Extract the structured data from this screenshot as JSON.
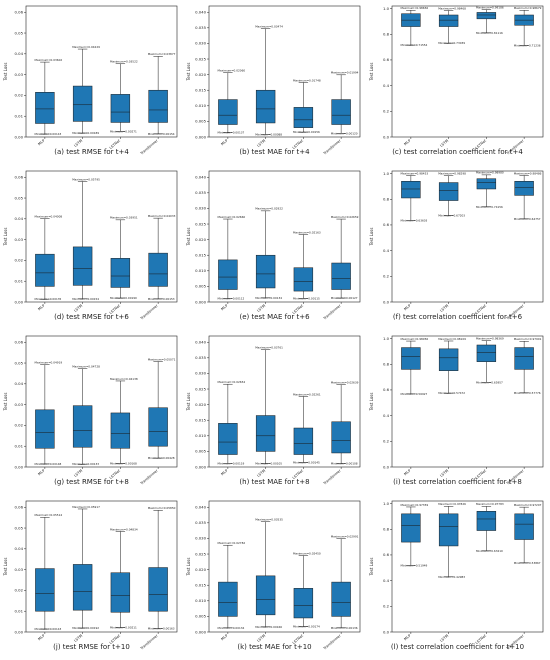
{
  "chart_data": [
    {
      "type": "box",
      "caption": "(a) test RMSE for t+4",
      "ylabel": "Test Loss",
      "ylim": [
        0,
        0.063
      ],
      "yticks": [
        0.0,
        0.01,
        0.02,
        0.03,
        0.04,
        0.05,
        0.06
      ],
      "categories": [
        "MLP",
        "LSTM",
        "LSTNet",
        "Transformer"
      ],
      "boxes": [
        {
          "max": 0.03602,
          "max_label": "Maximum=0.03602",
          "min": 0.00143,
          "min_label": "Minimum=0.00143",
          "q1": 0.0065,
          "median": 0.0135,
          "q3": 0.0215
        },
        {
          "max": 0.04229,
          "max_label": "Maximum=0.04229",
          "min": 0.00189,
          "min_label": "Minimum=0.00189",
          "q1": 0.0075,
          "median": 0.0155,
          "q3": 0.0245
        },
        {
          "max": 0.03522,
          "max_label": "Maximum=0.03522",
          "min": 0.00271,
          "min_label": "Minimum=0.00271",
          "q1": 0.007,
          "median": 0.012,
          "q3": 0.0205
        },
        {
          "max": 0.03877,
          "max_label": "Maximum=0.03877",
          "min": 0.00154,
          "min_label": "Minimum=0.00154",
          "q1": 0.007,
          "median": 0.013,
          "q3": 0.0225
        }
      ]
    },
    {
      "type": "box",
      "caption": "(b) test MAE for t+4",
      "ylabel": "Test Loss",
      "ylim": [
        0,
        0.042
      ],
      "yticks": [
        0.0,
        0.005,
        0.01,
        0.015,
        0.02,
        0.025,
        0.03,
        0.035,
        0.04
      ],
      "categories": [
        "MLP",
        "LSTM",
        "LSTNet",
        "Transformer"
      ],
      "boxes": [
        {
          "max": 0.0206,
          "max_label": "Maximum=0.02060",
          "min": 0.00137,
          "min_label": "Minimum=0.00137",
          "q1": 0.004,
          "median": 0.007,
          "q3": 0.012
        },
        {
          "max": 0.03474,
          "max_label": "Maximum=0.03474",
          "min": 0.00088,
          "min_label": "Minimum=0.00088",
          "q1": 0.0045,
          "median": 0.009,
          "q3": 0.015
        },
        {
          "max": 0.01748,
          "max_label": "Maximum=0.01748",
          "min": 0.00156,
          "min_label": "Minimum=0.00156",
          "q1": 0.003,
          "median": 0.0055,
          "q3": 0.0095
        },
        {
          "max": 0.01994,
          "max_label": "Maximum=0.01994",
          "min": 0.0012,
          "min_label": "Minimum=0.00120",
          "q1": 0.004,
          "median": 0.007,
          "q3": 0.012
        }
      ]
    },
    {
      "type": "box",
      "caption": "(c) test correlation coefficient for t+4",
      "ylabel": "Test Loss",
      "ylim": [
        0,
        1.02
      ],
      "yticks": [
        0.0,
        0.2,
        0.4,
        0.6,
        0.8,
        1.0
      ],
      "categories": [
        "MLP",
        "LSTM",
        "LSTNet",
        "Transformer"
      ],
      "boxes": [
        {
          "max": 0.98656,
          "max_label": "Maximum=0.98656",
          "min": 0.71554,
          "min_label": "Minimum=0.71554",
          "q1": 0.86,
          "median": 0.91,
          "q3": 0.96
        },
        {
          "max": 0.98468,
          "max_label": "Maximum=0.98468",
          "min": 0.73039,
          "min_label": "Minimum=0.73039",
          "q1": 0.86,
          "median": 0.91,
          "q3": 0.95
        },
        {
          "max": 0.99186,
          "max_label": "Maximum=0.99186",
          "min": 0.81116,
          "min_label": "Minimum=0.81116",
          "q1": 0.92,
          "median": 0.95,
          "q3": 0.97
        },
        {
          "max": 0.98679,
          "max_label": "Maximum=0.98679",
          "min": 0.71236,
          "min_label": "Minimum=0.71236",
          "q1": 0.87,
          "median": 0.91,
          "q3": 0.95
        }
      ]
    },
    {
      "type": "box",
      "caption": "(d) test RMSE for t+6",
      "ylabel": "Test Loss",
      "ylim": [
        0,
        0.063
      ],
      "yticks": [
        0.0,
        0.01,
        0.02,
        0.03,
        0.04,
        0.05,
        0.06
      ],
      "categories": [
        "MLP",
        "LSTM",
        "LSTNet",
        "Transformer"
      ],
      "boxes": [
        {
          "max": 0.04008,
          "max_label": "Maximum=0.04008",
          "min": 0.00135,
          "min_label": "Minimum=0.00135",
          "q1": 0.0075,
          "median": 0.014,
          "q3": 0.023
        },
        {
          "max": 0.05795,
          "max_label": "Maximum=0.05795",
          "min": 0.00154,
          "min_label": "Minimum=0.00154",
          "q1": 0.008,
          "median": 0.016,
          "q3": 0.0265
        },
        {
          "max": 0.03951,
          "max_label": "Maximum=0.03951",
          "min": 0.0019,
          "min_label": "Minimum=0.00190",
          "q1": 0.007,
          "median": 0.0125,
          "q3": 0.021
        },
        {
          "max": 0.04033,
          "max_label": "Maximum=0.04033",
          "min": 0.00153,
          "min_label": "Minimum=0.00153",
          "q1": 0.0075,
          "median": 0.0135,
          "q3": 0.0235
        }
      ]
    },
    {
      "type": "box",
      "caption": "(e) test MAE for t+6",
      "ylabel": "Test Loss",
      "ylim": [
        0,
        0.042
      ],
      "yticks": [
        0.0,
        0.005,
        0.01,
        0.015,
        0.02,
        0.025,
        0.03,
        0.035,
        0.04
      ],
      "categories": [
        "MLP",
        "LSTM",
        "LSTNet",
        "Transformer"
      ],
      "boxes": [
        {
          "max": 0.0266,
          "max_label": "Maximum=0.02660",
          "min": 0.00112,
          "min_label": "Minimum=0.00112",
          "q1": 0.004,
          "median": 0.008,
          "q3": 0.0135
        },
        {
          "max": 0.02922,
          "max_label": "Maximum=0.02922",
          "min": 0.00134,
          "min_label": "Minimum=0.00134",
          "q1": 0.0045,
          "median": 0.009,
          "q3": 0.015
        },
        {
          "max": 0.02163,
          "max_label": "Maximum=0.02163",
          "min": 0.00115,
          "min_label": "Minimum=0.00115",
          "q1": 0.0035,
          "median": 0.0065,
          "q3": 0.011
        },
        {
          "max": 0.02659,
          "max_label": "Maximum=0.02659",
          "min": 0.00127,
          "min_label": "Minimum=0.00127",
          "q1": 0.004,
          "median": 0.0075,
          "q3": 0.0125
        }
      ]
    },
    {
      "type": "box",
      "caption": "(f) test correlation coefficient for t+6",
      "ylabel": "Test Loss",
      "ylim": [
        0,
        1.02
      ],
      "yticks": [
        0.0,
        0.2,
        0.4,
        0.6,
        0.8,
        1.0
      ],
      "categories": [
        "MLP",
        "LSTM",
        "LSTNet",
        "Transformer"
      ],
      "boxes": [
        {
          "max": 0.98453,
          "max_label": "Maximum=0.98453",
          "min": 0.63603,
          "min_label": "Minimum=0.63603",
          "q1": 0.81,
          "median": 0.88,
          "q3": 0.94
        },
        {
          "max": 0.98298,
          "max_label": "Maximum=0.98298",
          "min": 0.67203,
          "min_label": "Minimum=0.67203",
          "q1": 0.79,
          "median": 0.87,
          "q3": 0.93
        },
        {
          "max": 0.9898,
          "max_label": "Maximum=0.98980",
          "min": 0.74156,
          "min_label": "Minimum=0.74156",
          "q1": 0.88,
          "median": 0.93,
          "q3": 0.96
        },
        {
          "max": 0.98486,
          "max_label": "Maximum=0.98486",
          "min": 0.64757,
          "min_label": "Minimum=0.64757",
          "q1": 0.83,
          "median": 0.89,
          "q3": 0.94
        }
      ]
    },
    {
      "type": "box",
      "caption": "(g) test RMSE for t+8",
      "ylabel": "Test Loss",
      "ylim": [
        0,
        0.063
      ],
      "yticks": [
        0.0,
        0.01,
        0.02,
        0.03,
        0.04,
        0.05,
        0.06
      ],
      "categories": [
        "MLP",
        "LSTM",
        "LSTNet",
        "Transformer"
      ],
      "boxes": [
        {
          "max": 0.04919,
          "max_label": "Maximum=0.04919",
          "min": 0.00148,
          "min_label": "Minimum=0.00148",
          "q1": 0.009,
          "median": 0.0165,
          "q3": 0.0275
        },
        {
          "max": 0.04728,
          "max_label": "Maximum=0.04728",
          "min": 0.00133,
          "min_label": "Minimum=0.00133",
          "q1": 0.0095,
          "median": 0.0175,
          "q3": 0.0295
        },
        {
          "max": 0.04138,
          "max_label": "Maximum=0.04138",
          "min": 0.00168,
          "min_label": "Minimum=0.00168",
          "q1": 0.009,
          "median": 0.016,
          "q3": 0.026
        },
        {
          "max": 0.05071,
          "max_label": "Maximum=0.05071",
          "min": 0.00428,
          "min_label": "Minimum=0.00428",
          "q1": 0.01,
          "median": 0.017,
          "q3": 0.0285
        }
      ]
    },
    {
      "type": "box",
      "caption": "(h) test MAE for t+8",
      "ylabel": "Test Loss",
      "ylim": [
        0,
        0.042
      ],
      "yticks": [
        0.0,
        0.005,
        0.01,
        0.015,
        0.02,
        0.025,
        0.03,
        0.035,
        0.04
      ],
      "categories": [
        "MLP",
        "LSTM",
        "LSTNet",
        "Transformer"
      ],
      "boxes": [
        {
          "max": 0.02654,
          "max_label": "Maximum=0.02654",
          "min": 0.00119,
          "min_label": "Minimum=0.00119",
          "q1": 0.004,
          "median": 0.008,
          "q3": 0.014
        },
        {
          "max": 0.03761,
          "max_label": "Maximum=0.03761",
          "min": 0.00105,
          "min_label": "Minimum=0.00105",
          "q1": 0.005,
          "median": 0.01,
          "q3": 0.0165
        },
        {
          "max": 0.02261,
          "max_label": "Maximum=0.02261",
          "min": 0.00145,
          "min_label": "Minimum=0.00145",
          "q1": 0.004,
          "median": 0.0075,
          "q3": 0.0125
        },
        {
          "max": 0.02639,
          "max_label": "Maximum=0.02639",
          "min": 0.00108,
          "min_label": "Minimum=0.00108",
          "q1": 0.0045,
          "median": 0.0085,
          "q3": 0.0145
        }
      ]
    },
    {
      "type": "box",
      "caption": "(i) test correlation coefficient for t+8",
      "ylabel": "Test Loss",
      "ylim": [
        0,
        1.02
      ],
      "yticks": [
        0.0,
        0.2,
        0.4,
        0.6,
        0.8,
        1.0
      ],
      "categories": [
        "MLP",
        "LSTM",
        "LSTNet",
        "Transformer"
      ],
      "boxes": [
        {
          "max": 0.98056,
          "max_label": "Maximum=0.98056",
          "min": 0.56927,
          "min_label": "Minimum=0.56927",
          "q1": 0.76,
          "median": 0.86,
          "q3": 0.93
        },
        {
          "max": 0.98109,
          "max_label": "Maximum=0.98109",
          "min": 0.57472,
          "min_label": "Minimum=0.57472",
          "q1": 0.75,
          "median": 0.85,
          "q3": 0.92
        },
        {
          "max": 0.98369,
          "max_label": "Maximum=0.98369",
          "min": 0.65957,
          "min_label": "Minimum=0.65957",
          "q1": 0.82,
          "median": 0.89,
          "q3": 0.95
        },
        {
          "max": 0.97901,
          "max_label": "Maximum=0.97901",
          "min": 0.57776,
          "min_label": "Minimum=0.57776",
          "q1": 0.76,
          "median": 0.86,
          "q3": 0.93
        }
      ]
    },
    {
      "type": "box",
      "caption": "(j) test RMSE for t+10",
      "ylabel": "Test Loss",
      "ylim": [
        0,
        0.063
      ],
      "yticks": [
        0.0,
        0.01,
        0.02,
        0.03,
        0.04,
        0.05,
        0.06
      ],
      "categories": [
        "MLP",
        "LSTM",
        "LSTNet",
        "Transformer"
      ],
      "boxes": [
        {
          "max": 0.05514,
          "max_label": "Maximum=0.05514",
          "min": 0.00143,
          "min_label": "Minimum=0.00143",
          "q1": 0.01,
          "median": 0.0185,
          "q3": 0.0305
        },
        {
          "max": 0.05917,
          "max_label": "Maximum=0.05917",
          "min": 0.00192,
          "min_label": "Minimum=0.00192",
          "q1": 0.0105,
          "median": 0.0195,
          "q3": 0.0325
        },
        {
          "max": 0.04834,
          "max_label": "Maximum=0.04834",
          "min": 0.00211,
          "min_label": "Minimum=0.00211",
          "q1": 0.0095,
          "median": 0.0175,
          "q3": 0.0285
        },
        {
          "max": 0.0585,
          "max_label": "Maximum=0.05850",
          "min": 0.00163,
          "min_label": "Minimum=0.00163",
          "q1": 0.01,
          "median": 0.018,
          "q3": 0.031
        }
      ]
    },
    {
      "type": "box",
      "caption": "(k) test MAE for t+10",
      "ylabel": "Test Loss",
      "ylim": [
        0,
        0.042
      ],
      "yticks": [
        0.0,
        0.005,
        0.01,
        0.015,
        0.02,
        0.025,
        0.03,
        0.035,
        0.04
      ],
      "categories": [
        "MLP",
        "LSTM",
        "LSTNet",
        "Transformer"
      ],
      "boxes": [
        {
          "max": 0.02782,
          "max_label": "Maximum=0.02782",
          "min": 0.00134,
          "min_label": "Minimum=0.00134",
          "q1": 0.005,
          "median": 0.0095,
          "q3": 0.016
        },
        {
          "max": 0.03535,
          "max_label": "Maximum=0.03535",
          "min": 0.00166,
          "min_label": "Minimum=0.00166",
          "q1": 0.0055,
          "median": 0.0105,
          "q3": 0.018
        },
        {
          "max": 0.0245,
          "max_label": "Maximum=0.02450",
          "min": 0.00174,
          "min_label": "Minimum=0.00174",
          "q1": 0.0045,
          "median": 0.0085,
          "q3": 0.014
        },
        {
          "max": 0.02991,
          "max_label": "Maximum=0.02991",
          "min": 0.00136,
          "min_label": "Minimum=0.00136",
          "q1": 0.005,
          "median": 0.0095,
          "q3": 0.016
        }
      ]
    },
    {
      "type": "box",
      "caption": "(l) test correlation coefficient for t+10",
      "ylabel": "Test Loss",
      "ylim": [
        0,
        1.02
      ],
      "yticks": [
        0.0,
        0.2,
        0.4,
        0.6,
        0.8,
        1.0
      ],
      "categories": [
        "MLP",
        "LSTM",
        "LSTNet",
        "Transformer"
      ],
      "boxes": [
        {
          "max": 0.97359,
          "max_label": "Maximum=0.97359",
          "min": 0.51949,
          "min_label": "Minimum=0.51949",
          "q1": 0.7,
          "median": 0.83,
          "q3": 0.92
        },
        {
          "max": 0.97826,
          "max_label": "Maximum=0.97826",
          "min": 0.42983,
          "min_label": "Minimum=0.42983",
          "q1": 0.67,
          "median": 0.82,
          "q3": 0.92
        },
        {
          "max": 0.97783,
          "max_label": "Maximum=0.97783",
          "min": 0.6321,
          "min_label": "Minimum=0.63210",
          "q1": 0.79,
          "median": 0.88,
          "q3": 0.94
        },
        {
          "max": 0.97207,
          "max_label": "Maximum=0.97207",
          "min": 0.53867,
          "min_label": "Minimum=0.53867",
          "q1": 0.72,
          "median": 0.84,
          "q3": 0.92
        }
      ]
    }
  ],
  "style": {
    "box_fill": "#1f77b4",
    "box_stroke": "#1a1a1a",
    "median_color": "#1a1a1a"
  }
}
